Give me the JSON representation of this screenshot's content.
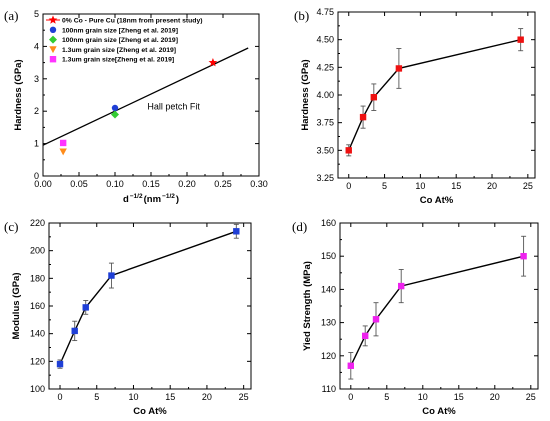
{
  "chart_data": [
    {
      "panel_label": "(a)",
      "type": "scatter",
      "xlabel": "d",
      "xlabel_sup1": "−1/2",
      "xlabel_mid": "(nm",
      "xlabel_sup2": "−1/2",
      "xlabel_end": ")",
      "ylabel": "Hardness (GPa)",
      "xlim": [
        0.0,
        0.3
      ],
      "ylim": [
        0,
        5
      ],
      "xticks": [
        0.0,
        0.05,
        0.1,
        0.15,
        0.2,
        0.25,
        0.3
      ],
      "xtick_labels": [
        "0.00",
        "0.05",
        "0.10",
        "0.15",
        "0.20",
        "0.25",
        "0.30"
      ],
      "yticks": [
        0,
        1,
        2,
        3,
        4,
        5
      ],
      "ytick_labels": [
        "0",
        "1",
        "2",
        "3",
        "4",
        "5"
      ],
      "series": [
        {
          "name": "0% Co - Pure Cu (18nm from present study)",
          "marker": "star",
          "color": "#ff0000",
          "points": [
            [
              0.236,
              3.5
            ]
          ]
        },
        {
          "name": "100nm grain size [Zheng et al. 2019]",
          "marker": "circle",
          "color": "#1f3fd6",
          "points": [
            [
              0.1,
              2.1
            ]
          ]
        },
        {
          "name": "100nm grain size [Zheng et al. 2019]",
          "marker": "diamond",
          "color": "#33cc33",
          "points": [
            [
              0.1,
              1.9
            ]
          ]
        },
        {
          "name": "1.3um grain size [Zheng et al. 2019]",
          "marker": "triangle-down",
          "color": "#ff8c1a",
          "points": [
            [
              0.028,
              0.75
            ]
          ]
        },
        {
          "name": "1.3um grain size[Zheng et al. 2019]",
          "marker": "square",
          "color": "#ff33ff",
          "points": [
            [
              0.028,
              1.02
            ]
          ]
        }
      ],
      "fit_line": {
        "x": [
          0.0,
          0.285
        ],
        "y": [
          0.95,
          3.95
        ]
      },
      "annotation": "Hall petch Fit"
    },
    {
      "panel_label": "(b)",
      "type": "line",
      "xlabel": "Co At%",
      "ylabel": "Hardness (GPa)",
      "xlim": [
        -1.5,
        26
      ],
      "ylim": [
        3.25,
        4.75
      ],
      "xticks": [
        0,
        5,
        10,
        15,
        20,
        25
      ],
      "xtick_labels": [
        "0",
        "5",
        "10",
        "15",
        "20",
        "25"
      ],
      "yticks": [
        3.25,
        3.5,
        3.75,
        4.0,
        4.25,
        4.5,
        4.75
      ],
      "ytick_labels": [
        "3.25",
        "3.50",
        "3.75",
        "4.00",
        "4.25",
        "4.50",
        "4.75"
      ],
      "marker": "square",
      "color": "#ee1111",
      "x": [
        0,
        2,
        3.5,
        7,
        24
      ],
      "y": [
        3.5,
        3.8,
        3.98,
        4.24,
        4.5
      ],
      "err": [
        0.05,
        0.1,
        0.12,
        0.18,
        0.1
      ]
    },
    {
      "panel_label": "(c)",
      "type": "line",
      "xlabel": "Co At%",
      "ylabel": "Modulus (GPa)",
      "xlim": [
        -1.5,
        26
      ],
      "ylim": [
        100,
        220
      ],
      "xticks": [
        0,
        5,
        10,
        15,
        20,
        25
      ],
      "xtick_labels": [
        "0",
        "5",
        "10",
        "15",
        "20",
        "25"
      ],
      "yticks": [
        100,
        120,
        140,
        160,
        180,
        200,
        220
      ],
      "ytick_labels": [
        "100",
        "120",
        "140",
        "160",
        "180",
        "200",
        "220"
      ],
      "marker": "square",
      "color": "#1f3fd6",
      "x": [
        0,
        2,
        3.5,
        7,
        24
      ],
      "y": [
        118,
        142,
        159,
        182,
        214
      ],
      "err": [
        3,
        7,
        5,
        9,
        5
      ]
    },
    {
      "panel_label": "(d)",
      "type": "line",
      "xlabel": "Co At%",
      "ylabel": "Yied Strength (MPa)",
      "xlim": [
        -1.5,
        26
      ],
      "ylim": [
        110,
        160
      ],
      "xticks": [
        0,
        5,
        10,
        15,
        20,
        25
      ],
      "xtick_labels": [
        "0",
        "5",
        "10",
        "15",
        "20",
        "25"
      ],
      "yticks": [
        110,
        120,
        130,
        140,
        150,
        160
      ],
      "ytick_labels": [
        "110",
        "120",
        "130",
        "140",
        "150",
        "160"
      ],
      "marker": "square",
      "color": "#ee22ee",
      "x": [
        0,
        2,
        3.5,
        7,
        24
      ],
      "y": [
        117,
        126,
        131,
        141,
        150
      ],
      "err": [
        4,
        3,
        5,
        5,
        6
      ]
    }
  ]
}
